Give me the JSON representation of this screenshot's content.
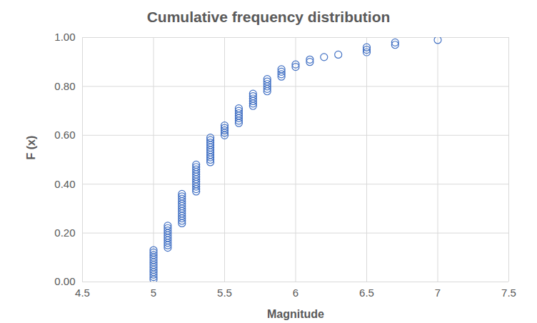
{
  "chart_data": {
    "type": "scatter",
    "title": "Cumulative frequency distribution",
    "x_label": "Magnitude",
    "y_label": "F (x)",
    "x": [
      5.0,
      5.0,
      5.0,
      5.0,
      5.0,
      5.0,
      5.0,
      5.0,
      5.0,
      5.0,
      5.0,
      5.0,
      5.0,
      5.1,
      5.1,
      5.1,
      5.1,
      5.1,
      5.1,
      5.1,
      5.1,
      5.1,
      5.1,
      5.2,
      5.2,
      5.2,
      5.2,
      5.2,
      5.2,
      5.2,
      5.2,
      5.2,
      5.2,
      5.2,
      5.2,
      5.2,
      5.3,
      5.3,
      5.3,
      5.3,
      5.3,
      5.3,
      5.3,
      5.3,
      5.3,
      5.3,
      5.3,
      5.3,
      5.4,
      5.4,
      5.4,
      5.4,
      5.4,
      5.4,
      5.4,
      5.4,
      5.4,
      5.4,
      5.4,
      5.5,
      5.5,
      5.5,
      5.5,
      5.5,
      5.6,
      5.6,
      5.6,
      5.6,
      5.6,
      5.6,
      5.6,
      5.7,
      5.7,
      5.7,
      5.7,
      5.7,
      5.7,
      5.8,
      5.8,
      5.8,
      5.8,
      5.8,
      5.8,
      5.9,
      5.9,
      5.9,
      5.9,
      6.0,
      6.0,
      6.1,
      6.1,
      6.2,
      6.3,
      6.5,
      6.5,
      6.5,
      6.7,
      6.7,
      7.0
    ],
    "values": [
      0.01,
      0.02,
      0.03,
      0.04,
      0.05,
      0.06,
      0.07,
      0.08,
      0.09,
      0.1,
      0.11,
      0.12,
      0.13,
      0.14,
      0.15,
      0.16,
      0.17,
      0.18,
      0.19,
      0.2,
      0.21,
      0.22,
      0.23,
      0.24,
      0.25,
      0.26,
      0.27,
      0.28,
      0.29,
      0.3,
      0.31,
      0.32,
      0.33,
      0.34,
      0.35,
      0.36,
      0.37,
      0.38,
      0.39,
      0.4,
      0.41,
      0.42,
      0.43,
      0.44,
      0.45,
      0.46,
      0.47,
      0.48,
      0.49,
      0.5,
      0.51,
      0.52,
      0.53,
      0.54,
      0.55,
      0.56,
      0.57,
      0.58,
      0.59,
      0.6,
      0.61,
      0.62,
      0.63,
      0.64,
      0.65,
      0.66,
      0.67,
      0.68,
      0.69,
      0.7,
      0.71,
      0.72,
      0.73,
      0.74,
      0.75,
      0.76,
      0.77,
      0.78,
      0.79,
      0.8,
      0.81,
      0.82,
      0.83,
      0.84,
      0.85,
      0.86,
      0.87,
      0.88,
      0.89,
      0.9,
      0.91,
      0.92,
      0.93,
      0.94,
      0.95,
      0.96,
      0.97,
      0.98,
      0.99
    ],
    "color": "#4472c4",
    "marker": "circle",
    "xlim": [
      4.5,
      7.5
    ],
    "xticks": [
      4.5,
      5,
      5.5,
      6,
      6.5,
      7,
      7.5
    ],
    "ylim": [
      0,
      1
    ],
    "yticks": [
      {
        "value": 0,
        "label": "0.00"
      },
      {
        "value": 0.2,
        "label": "0.20"
      },
      {
        "value": 0.4,
        "label": "0.40"
      },
      {
        "value": 0.6,
        "label": "0.60"
      },
      {
        "value": 0.8,
        "label": "0.80"
      },
      {
        "value": 1,
        "label": "1.00"
      }
    ],
    "grid": true
  }
}
